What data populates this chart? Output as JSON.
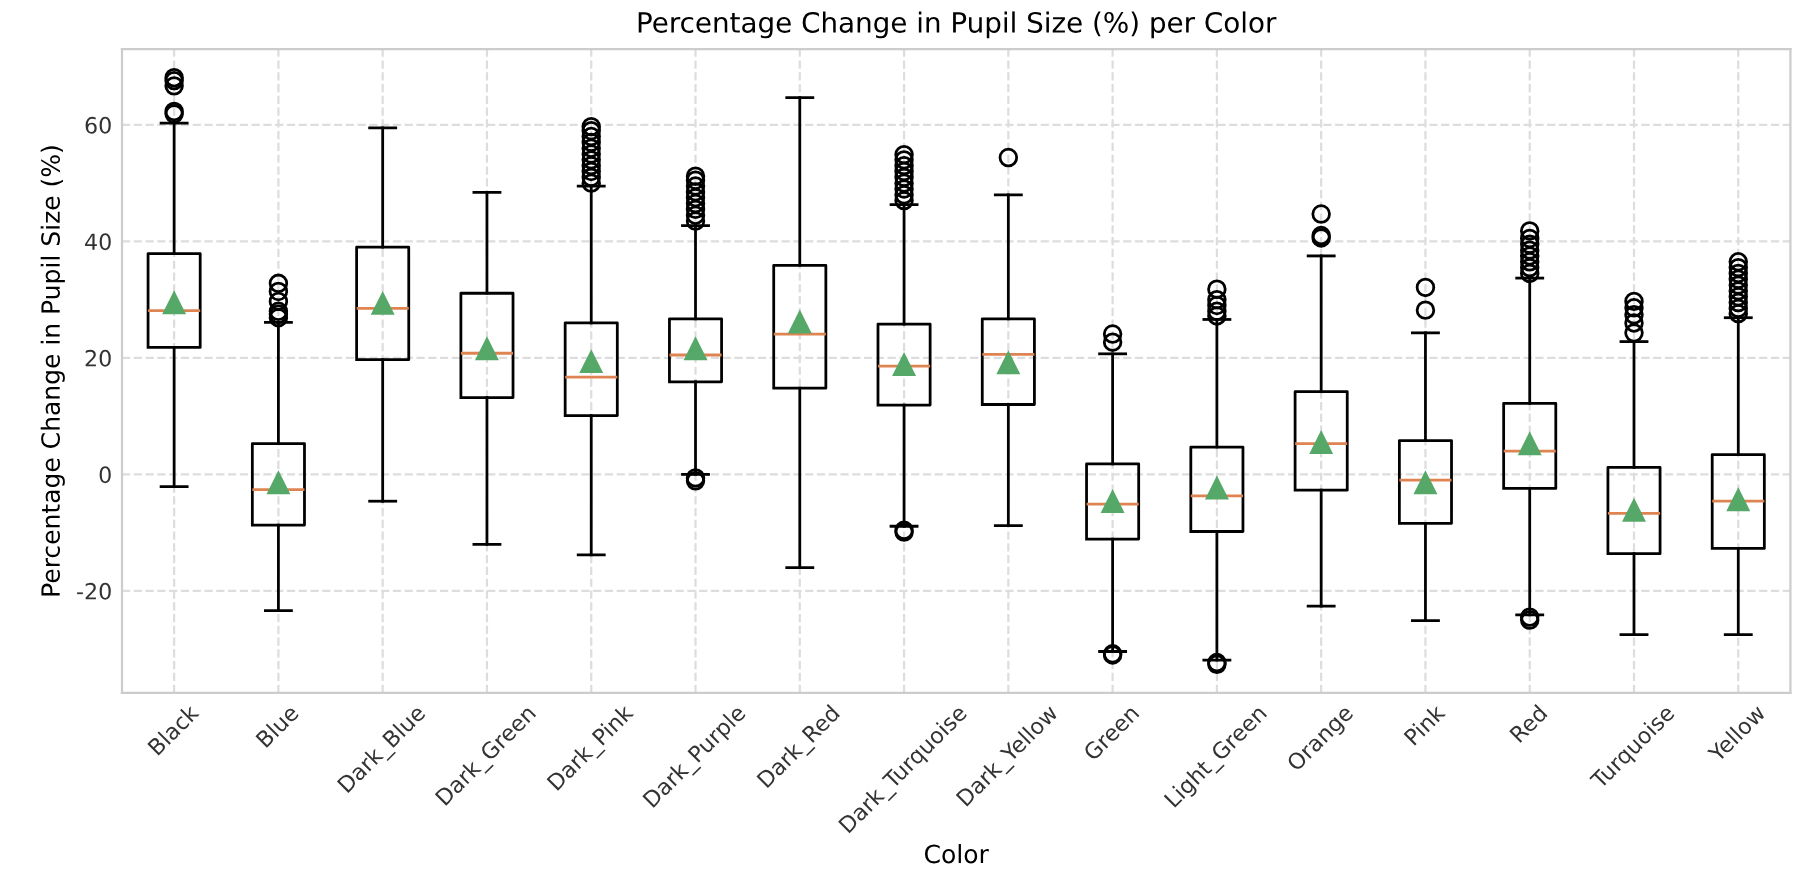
{
  "chart_data": {
    "type": "box",
    "title": "Percentage Change in Pupil Size (%) per Color",
    "xlabel": "Color",
    "ylabel": "Percentage Change in Pupil Size (%)",
    "categories": [
      "Black",
      "Blue",
      "Dark_Blue",
      "Dark_Green",
      "Dark_Pink",
      "Dark_Purple",
      "Dark_Red",
      "Dark_Turquoise",
      "Dark_Yellow",
      "Green",
      "Light_Green",
      "Orange",
      "Pink",
      "Red",
      "Turquoise",
      "Yellow"
    ],
    "ylim": [
      -37.5,
      73
    ],
    "yticks": [
      -20,
      0,
      20,
      40,
      60
    ],
    "grid": true,
    "line_style": "dashed",
    "series": [
      {
        "boxes": [
          {
            "low": -2.1,
            "q1": 21.8,
            "median": 28.1,
            "q3": 37.9,
            "high": 60.3,
            "mean": 29.4,
            "outliers": [
              61.9,
              62.3,
              66.7,
              67.6,
              68.1
            ]
          },
          {
            "low": -23.4,
            "q1": -8.7,
            "median": -2.6,
            "q3": 5.3,
            "high": 26.1,
            "mean": -1.5,
            "outliers": [
              26.9,
              27.5,
              28.0,
              29.7,
              31.4,
              32.8
            ]
          },
          {
            "low": -4.6,
            "q1": 19.7,
            "median": 28.5,
            "q3": 39.0,
            "high": 59.5,
            "mean": 29.3
          },
          {
            "low": -12.0,
            "q1": 13.2,
            "median": 20.8,
            "q3": 31.1,
            "high": 48.4,
            "mean": 21.5
          },
          {
            "low": -13.8,
            "q1": 10.1,
            "median": 16.7,
            "q3": 26.0,
            "high": 49.5,
            "mean": 19.3,
            "outliers": [
              50.0,
              51.0,
              52.0,
              53.0,
              54.0,
              55.0,
              56.0,
              57.0,
              58.0,
              59.0,
              59.7
            ]
          },
          {
            "low": 0.0,
            "q1": 15.9,
            "median": 20.5,
            "q3": 26.7,
            "high": 42.7,
            "mean": 21.5,
            "outliers": [
              -1.1,
              -0.6,
              43.5,
              44.5,
              45.5,
              46.5,
              47.5,
              48.5,
              49.5,
              50.5,
              51.2
            ]
          },
          {
            "low": -16.0,
            "q1": 14.8,
            "median": 24.1,
            "q3": 35.9,
            "high": 64.7,
            "mean": 26.1
          },
          {
            "low": -8.9,
            "q1": 11.9,
            "median": 18.6,
            "q3": 25.8,
            "high": 46.3,
            "mean": 18.8,
            "outliers": [
              -9.9,
              -9.6,
              47.0,
              48.0,
              49.0,
              50.0,
              51.0,
              52.0,
              53.0,
              54.0,
              54.9
            ]
          },
          {
            "low": -8.8,
            "q1": 12.0,
            "median": 20.6,
            "q3": 26.7,
            "high": 48.0,
            "mean": 19.1,
            "outliers": [
              54.4
            ]
          },
          {
            "low": -30.4,
            "q1": -11.1,
            "median": -5.1,
            "q3": 1.8,
            "high": 20.7,
            "mean": -4.7,
            "outliers": [
              -31.0,
              -30.8,
              22.7,
              24.1
            ]
          },
          {
            "low": -31.9,
            "q1": -9.8,
            "median": -3.7,
            "q3": 4.7,
            "high": 26.6,
            "mean": -2.4,
            "outliers": [
              -32.6,
              -32.3,
              27.2,
              28.0,
              29.0,
              30.0,
              31.8
            ]
          },
          {
            "low": -22.6,
            "q1": -2.7,
            "median": 5.3,
            "q3": 14.2,
            "high": 37.5,
            "mean": 5.4,
            "outliers": [
              40.6,
              41.0,
              44.7
            ]
          },
          {
            "low": -25.1,
            "q1": -8.4,
            "median": -1.0,
            "q3": 5.8,
            "high": 24.3,
            "mean": -1.5,
            "outliers": [
              28.2,
              32.1
            ]
          },
          {
            "low": -24.1,
            "q1": -2.4,
            "median": 4.0,
            "q3": 12.2,
            "high": 33.7,
            "mean": 5.2,
            "outliers": [
              -25.0,
              -24.5,
              34.5,
              35.5,
              36.5,
              37.5,
              38.5,
              39.5,
              40.5,
              41.8
            ]
          },
          {
            "low": -27.5,
            "q1": -13.6,
            "median": -6.7,
            "q3": 1.2,
            "high": 22.8,
            "mean": -6.2,
            "outliers": [
              24.3,
              26.0,
              27.4,
              28.6,
              29.7
            ]
          },
          {
            "low": -27.5,
            "q1": -12.7,
            "median": -4.6,
            "q3": 3.4,
            "high": 26.9,
            "mean": -4.4,
            "outliers": [
              27.6,
              28.5,
              29.5,
              30.5,
              31.5,
              32.5,
              33.5,
              34.5,
              35.5,
              36.5
            ]
          }
        ]
      }
    ]
  }
}
